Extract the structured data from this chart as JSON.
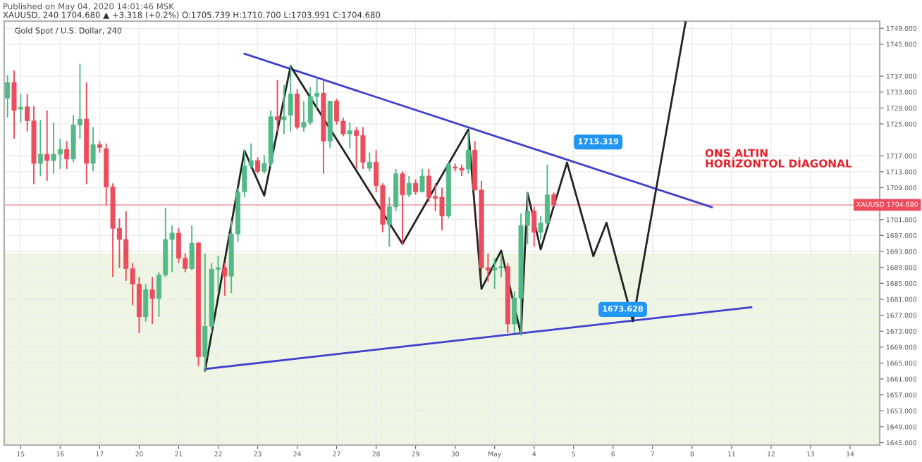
{
  "chart_data": {
    "type": "candlestick",
    "title": "Gold Spot / U.S. Dollar, 240",
    "annotations": [
      "Published on May 04, 2020 14:01:46 MSK",
      "XAUUSD, 240 1704.680 ▲ +3.318 (+0.2%) O:1705.739 H:1710.700 L:1703.991 C:1704.680",
      "ONS ALTIN\nHORİZONTOL DİAGONAL",
      "1715.319",
      "1673.628"
    ],
    "categories": [
      null,
      null,
      "15",
      null,
      null,
      null,
      null,
      null,
      "16",
      null,
      null,
      null,
      null,
      null,
      "17",
      null,
      null,
      null,
      null,
      null,
      "20",
      null,
      null,
      null,
      null,
      null,
      "21",
      null,
      null,
      null,
      null,
      null,
      "22",
      null,
      null,
      null,
      null,
      null,
      "23",
      null,
      null,
      null,
      null,
      null,
      "24",
      null,
      null,
      null,
      null,
      null,
      "27",
      null,
      null,
      null,
      null,
      null,
      "28",
      null,
      null,
      null,
      null,
      null,
      "29",
      null,
      null,
      null,
      null,
      null,
      "30",
      null,
      null,
      null,
      null,
      null,
      "May",
      null,
      null,
      null,
      null,
      null,
      "4",
      null,
      null,
      null,
      null,
      null,
      "5",
      null,
      null,
      null,
      null,
      null,
      "6",
      null,
      null,
      null,
      null,
      null,
      "7",
      null,
      null,
      null,
      null,
      null,
      "8",
      null,
      null,
      null,
      null,
      null,
      "11",
      null,
      null,
      null,
      null,
      null,
      "12",
      null,
      null,
      null,
      null,
      null,
      "13",
      null,
      null,
      null,
      null,
      null,
      "14",
      null,
      null,
      null,
      null
    ],
    "ohlc": [
      [
        1731.5,
        1737.2,
        1726.6,
        1735.4
      ],
      [
        1735.4,
        1738.4,
        1721.3,
        1728.4
      ],
      [
        1728.7,
        1732.5,
        1725.4,
        1729.2
      ],
      [
        1729.3,
        1732.5,
        1723.1,
        1725.8
      ],
      [
        1725.8,
        1729.5,
        1709.9,
        1715.1
      ],
      [
        1715.1,
        1726.0,
        1711.9,
        1717.4
      ],
      [
        1717.4,
        1728.4,
        1710.7,
        1715.8
      ],
      [
        1715.8,
        1725.4,
        1712.5,
        1717.4
      ],
      [
        1717.4,
        1721.3,
        1713.7,
        1718.6
      ],
      [
        1718.6,
        1720.7,
        1713.7,
        1716.2
      ],
      [
        1716.2,
        1727.2,
        1715.4,
        1724.7
      ],
      [
        1724.7,
        1740.1,
        1721.3,
        1726.2
      ],
      [
        1726.2,
        1735.4,
        1709.9,
        1715.1
      ],
      [
        1715.1,
        1724.2,
        1713.1,
        1719.8
      ],
      [
        1719.8,
        1720.7,
        1717.8,
        1719.1
      ],
      [
        1718.8,
        1720.1,
        1704.5,
        1709.2
      ],
      [
        1709.2,
        1710.1,
        1686.6,
        1698.8
      ],
      [
        1698.8,
        1701.3,
        1688.9,
        1696.0
      ],
      [
        1696.0,
        1703.1,
        1685.6,
        1688.7
      ],
      [
        1688.7,
        1690.1,
        1679.5,
        1684.8
      ],
      [
        1684.8,
        1686.6,
        1672.5,
        1676.6
      ],
      [
        1676.6,
        1684.8,
        1675.4,
        1683.4
      ],
      [
        1683.4,
        1686.6,
        1674.8,
        1681.2
      ],
      [
        1681.2,
        1687.8,
        1676.6,
        1687.1
      ],
      [
        1687.1,
        1704.0,
        1686.6,
        1696.0
      ],
      [
        1696.0,
        1699.5,
        1687.8,
        1697.6
      ],
      [
        1697.6,
        1698.9,
        1690.1,
        1691.3
      ],
      [
        1691.3,
        1692.5,
        1687.8,
        1688.7
      ],
      [
        1688.7,
        1699.5,
        1688.3,
        1695.1
      ],
      [
        1695.1,
        1695.4,
        1664.2,
        1666.6
      ],
      [
        1666.6,
        1692.5,
        1663.0,
        1674.2
      ],
      [
        1674.2,
        1690.1,
        1672.5,
        1688.5
      ],
      [
        1688.5,
        1691.9,
        1683.0,
        1688.9
      ],
      [
        1688.9,
        1690.1,
        1681.9,
        1686.8
      ],
      [
        1686.8,
        1700.7,
        1682.5,
        1697.4
      ],
      [
        1697.4,
        1709.0,
        1695.4,
        1708.0
      ],
      [
        1708.0,
        1718.4,
        1706.6,
        1714.5
      ],
      [
        1714.5,
        1720.1,
        1713.7,
        1715.8
      ],
      [
        1715.8,
        1716.6,
        1712.5,
        1713.1
      ],
      [
        1713.1,
        1717.2,
        1712.5,
        1715.1
      ],
      [
        1715.1,
        1728.4,
        1714.2,
        1726.8
      ],
      [
        1726.8,
        1736.0,
        1723.1,
        1726.0
      ],
      [
        1726.0,
        1734.8,
        1722.5,
        1726.8
      ],
      [
        1727.2,
        1739.5,
        1723.1,
        1732.5
      ],
      [
        1732.5,
        1733.7,
        1723.7,
        1724.2
      ],
      [
        1724.2,
        1730.7,
        1723.1,
        1725.4
      ],
      [
        1725.4,
        1734.2,
        1724.8,
        1731.9
      ],
      [
        1731.9,
        1736.6,
        1729.0,
        1732.7
      ],
      [
        1732.7,
        1736.0,
        1712.5,
        1720.7
      ],
      [
        1720.7,
        1730.7,
        1718.9,
        1730.7
      ],
      [
        1730.7,
        1731.3,
        1724.8,
        1725.7
      ],
      [
        1725.7,
        1726.6,
        1721.9,
        1722.5
      ],
      [
        1722.5,
        1725.4,
        1718.9,
        1723.3
      ],
      [
        1723.3,
        1724.2,
        1713.7,
        1722.1
      ],
      [
        1722.1,
        1724.2,
        1713.7,
        1715.4
      ],
      [
        1713.9,
        1717.8,
        1713.1,
        1715.4
      ],
      [
        1715.4,
        1718.4,
        1707.8,
        1709.5
      ],
      [
        1709.5,
        1710.1,
        1697.8,
        1699.8
      ],
      [
        1699.8,
        1706.6,
        1694.2,
        1704.2
      ],
      [
        1704.2,
        1713.7,
        1703.1,
        1712.5
      ],
      [
        1712.5,
        1713.1,
        1694.8,
        1707.2
      ],
      [
        1707.2,
        1711.9,
        1706.6,
        1710.1
      ],
      [
        1710.1,
        1711.1,
        1707.2,
        1708.0
      ],
      [
        1708.0,
        1713.7,
        1707.8,
        1711.9
      ],
      [
        1711.9,
        1713.7,
        1705.4,
        1706.6
      ],
      [
        1706.8,
        1710.1,
        1703.1,
        1706.3
      ],
      [
        1706.6,
        1709.0,
        1698.3,
        1701.9
      ],
      [
        1701.9,
        1715.4,
        1701.3,
        1714.8
      ],
      [
        1714.2,
        1715.1,
        1713.1,
        1713.9
      ],
      [
        1713.9,
        1714.8,
        1711.9,
        1713.4
      ],
      [
        1713.7,
        1723.1,
        1712.5,
        1718.4
      ],
      [
        1718.4,
        1720.7,
        1708.4,
        1708.4
      ],
      [
        1708.4,
        1710.7,
        1686.6,
        1688.9
      ],
      [
        1688.9,
        1692.5,
        1685.4,
        1688.3
      ],
      [
        1688.3,
        1691.3,
        1683.6,
        1688.9
      ],
      [
        1688.9,
        1692.5,
        1686.6,
        1689.2
      ],
      [
        1689.2,
        1690.1,
        1672.5,
        1674.8
      ],
      [
        1674.8,
        1683.0,
        1672.5,
        1681.3
      ],
      [
        1681.3,
        1702.5,
        1671.9,
        1699.5
      ],
      [
        1699.5,
        1707.8,
        1694.8,
        1703.1
      ],
      [
        1703.1,
        1704.2,
        1694.2,
        1697.8
      ],
      [
        1697.8,
        1701.9,
        1696.0,
        1700.1
      ],
      [
        1700.1,
        1714.8,
        1699.5,
        1707.2
      ],
      [
        1707.2,
        1707.8,
        1704.3,
        1704.68
      ],
      null,
      null,
      null,
      null,
      null,
      null,
      null,
      null,
      null,
      null,
      null,
      null,
      null,
      null,
      null,
      null,
      null,
      null,
      null,
      null,
      null,
      null,
      null,
      null,
      null,
      null,
      null,
      null,
      null,
      null,
      null,
      null,
      null,
      null,
      null,
      null,
      null,
      null,
      null,
      null,
      null,
      null,
      null,
      null,
      null,
      null,
      null,
      null,
      null
    ],
    "colors": [
      "#53b987",
      "#eb4d5c",
      "#53b987",
      "#eb4d5c",
      "#eb4d5c",
      "#53b987",
      "#eb4d5c",
      "#53b987",
      "#53b987",
      "#eb4d5c",
      "#53b987",
      "#53b987",
      "#eb4d5c",
      "#53b987",
      "#eb4d5c",
      "#eb4d5c",
      "#eb4d5c",
      "#eb4d5c",
      "#eb4d5c",
      "#eb4d5c",
      "#eb4d5c",
      "#53b987",
      "#eb4d5c",
      "#53b987",
      "#53b987",
      "#53b987",
      "#eb4d5c",
      "#eb4d5c",
      "#53b987",
      "#eb4d5c",
      "#53b987",
      "#53b987",
      "#53b987",
      "#eb4d5c",
      "#53b987",
      "#53b987",
      "#53b987",
      "#53b987",
      "#eb4d5c",
      "#53b987",
      "#53b987",
      "#eb4d5c",
      "#53b987",
      "#53b987",
      "#eb4d5c",
      "#53b987",
      "#53b987",
      "#53b987",
      "#eb4d5c",
      "#53b987",
      "#eb4d5c",
      "#eb4d5c",
      "#53b987",
      "#eb4d5c",
      "#eb4d5c",
      "#53b987",
      "#eb4d5c",
      "#eb4d5c",
      "#53b987",
      "#53b987",
      "#eb4d5c",
      "#53b987",
      "#eb4d5c",
      "#53b987",
      "#eb4d5c",
      "#eb4d5c",
      "#eb4d5c",
      "#53b987",
      "#eb4d5c",
      "#eb4d5c",
      "#53b987",
      "#eb4d5c",
      "#eb4d5c",
      "#eb4d5c",
      "#53b987",
      "#53b987",
      "#eb4d5c",
      "#53b987",
      "#53b987",
      "#53b987",
      "#eb4d5c",
      "#53b987",
      "#53b987",
      "#eb4d5c",
      null,
      null,
      null,
      null,
      null,
      null,
      null,
      null,
      null,
      null,
      null,
      null,
      null,
      null,
      null,
      null,
      null,
      null,
      null,
      null,
      null,
      null,
      null,
      null,
      null,
      null,
      null,
      null,
      null,
      null,
      null,
      null,
      null,
      null,
      null,
      null,
      null,
      null,
      null,
      null,
      null,
      null,
      null,
      null,
      null,
      null,
      null,
      null,
      null
    ],
    "series": [
      {
        "type": "line",
        "color": "#3f3fd0",
        "values": [
          null,
          null,
          null,
          null,
          null,
          null,
          null,
          null,
          null,
          null,
          null,
          null,
          null,
          null,
          null,
          null,
          null,
          null,
          null,
          null,
          null,
          null,
          null,
          null,
          null,
          null,
          null,
          null,
          null,
          null,
          null,
          null,
          null,
          null,
          null,
          null,
          1742.6,
          null,
          null,
          null,
          null,
          null,
          null,
          null,
          null,
          null,
          null,
          null,
          null,
          null,
          null,
          null,
          null,
          null,
          null,
          null,
          null,
          null,
          null,
          null,
          null,
          null,
          null,
          null,
          null,
          null,
          null,
          null,
          null,
          null,
          null,
          null,
          null,
          null,
          null,
          null,
          null,
          null,
          null,
          null,
          null,
          null,
          null,
          null,
          null,
          null,
          null,
          null,
          null,
          null,
          null,
          null,
          null,
          null,
          null,
          null,
          null,
          null,
          null,
          null,
          null,
          null,
          null,
          null,
          null,
          null,
          null,
          1704.1,
          null,
          null,
          null,
          null,
          null,
          null,
          null,
          null,
          null,
          null,
          null,
          null,
          null,
          null,
          null,
          null,
          null,
          null,
          null,
          null,
          null,
          null,
          null,
          null,
          null
        ]
      },
      {
        "type": "line",
        "color": "#3f3fd0",
        "values": [
          null,
          null,
          null,
          null,
          null,
          null,
          null,
          null,
          null,
          null,
          null,
          null,
          null,
          null,
          null,
          null,
          null,
          null,
          null,
          null,
          null,
          null,
          null,
          null,
          null,
          null,
          null,
          null,
          null,
          null,
          1663.5,
          null,
          null,
          null,
          null,
          null,
          null,
          null,
          null,
          null,
          null,
          null,
          null,
          null,
          null,
          null,
          null,
          null,
          null,
          null,
          null,
          null,
          null,
          null,
          null,
          null,
          null,
          null,
          null,
          null,
          null,
          null,
          null,
          null,
          null,
          null,
          null,
          null,
          null,
          null,
          null,
          null,
          null,
          null,
          null,
          null,
          null,
          null,
          null,
          null,
          null,
          null,
          null,
          null,
          null,
          null,
          null,
          null,
          null,
          null,
          null,
          null,
          null,
          null,
          null,
          null,
          null,
          null,
          null,
          null,
          null,
          null,
          null,
          null,
          null,
          null,
          null,
          null,
          null,
          null,
          null,
          null,
          null,
          1679.0,
          null,
          null,
          null,
          null,
          null,
          null,
          null,
          null,
          null,
          null,
          null,
          null,
          null,
          null,
          null,
          null,
          null,
          null,
          null
        ]
      },
      {
        "type": "line",
        "color": "#222222",
        "values": [
          null,
          null,
          null,
          null,
          null,
          null,
          null,
          null,
          null,
          null,
          null,
          null,
          null,
          null,
          null,
          null,
          null,
          null,
          null,
          null,
          null,
          null,
          null,
          null,
          null,
          null,
          null,
          null,
          null,
          null,
          1663.1,
          null,
          null,
          null,
          null,
          null,
          1718.3,
          null,
          null,
          1707.0,
          null,
          null,
          null,
          1739.5,
          null,
          null,
          null,
          null,
          null,
          null,
          null,
          null,
          null,
          null,
          null,
          null,
          null,
          null,
          null,
          null,
          1694.9,
          null,
          null,
          null,
          null,
          null,
          null,
          null,
          null,
          null,
          1723.6,
          null,
          1683.6,
          null,
          null,
          1693.2,
          null,
          null,
          1672.3,
          1707.7,
          null,
          1693.5,
          null,
          null,
          null,
          1715.3,
          null,
          null,
          null,
          1691.8,
          null,
          1700.2,
          null,
          null,
          null,
          1675.5,
          null,
          null,
          null,
          null,
          null,
          null,
          null,
          1750.5,
          null,
          null,
          null,
          null,
          null,
          null,
          null,
          null,
          null,
          null,
          null,
          null,
          null,
          null,
          null,
          null,
          null,
          null,
          null,
          null,
          null,
          null,
          null,
          null,
          null,
          null,
          null,
          null,
          null
        ]
      }
    ],
    "ref_lines": [
      {
        "axis": "y",
        "value": 1704.68,
        "label": "XAUUSD 1704.680",
        "color": "#eb4d5c"
      }
    ],
    "bands": [
      {
        "axis": "y",
        "from": 1644.4,
        "to": 1692.5,
        "color": "#eef5e3"
      }
    ],
    "ylim": [
      1644.4,
      1750.8
    ],
    "yticks": [
      {
        "value": 1645,
        "label": "1645.000"
      },
      {
        "value": 1649,
        "label": "1649.000"
      },
      {
        "value": 1653,
        "label": "1653.000"
      },
      {
        "value": 1657,
        "label": "1657.000"
      },
      {
        "value": 1661,
        "label": "1661.000"
      },
      {
        "value": 1665,
        "label": "1665.000"
      },
      {
        "value": 1669,
        "label": "1669.000"
      },
      {
        "value": 1673,
        "label": "1673.000"
      },
      {
        "value": 1677,
        "label": "1677.000"
      },
      {
        "value": 1681,
        "label": "1681.000"
      },
      {
        "value": 1685,
        "label": "1685.000"
      },
      {
        "value": 1689,
        "label": "1689.000"
      },
      {
        "value": 1693,
        "label": "1693.000"
      },
      {
        "value": 1697,
        "label": "1697.000"
      },
      {
        "value": 1701,
        "label": "1701.000"
      },
      {
        "value": 1709,
        "label": "1709.000"
      },
      {
        "value": 1713,
        "label": "1713.000"
      },
      {
        "value": 1717,
        "label": "1717.000"
      },
      {
        "value": 1725,
        "label": "1725.000"
      },
      {
        "value": 1729,
        "label": "1729.000"
      },
      {
        "value": 1733,
        "label": "1733.000"
      },
      {
        "value": 1737,
        "label": "1737.000"
      },
      {
        "value": 1745,
        "label": "1745.000"
      },
      {
        "value": 1749,
        "label": "1749.000"
      }
    ],
    "grid": true
  }
}
